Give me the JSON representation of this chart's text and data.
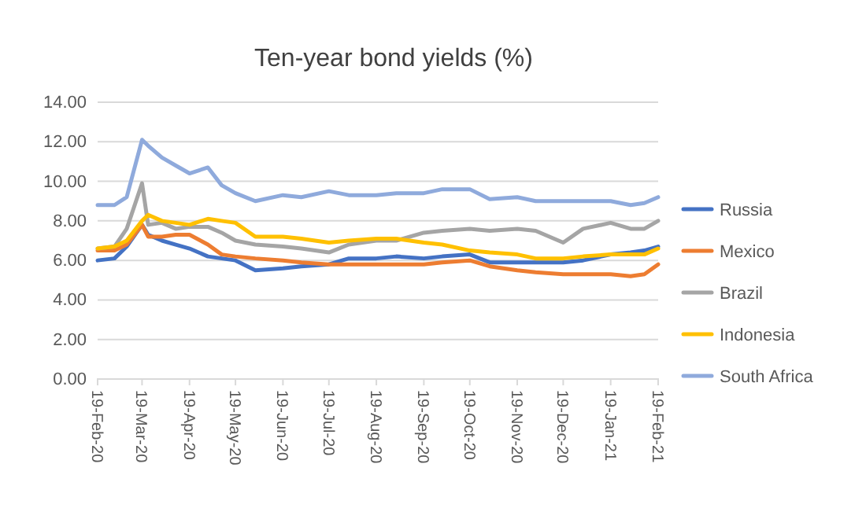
{
  "chart_data": {
    "type": "line",
    "title": "Ten-year bond yields (%)",
    "x": [
      "2020-02-19",
      "2020-03-01",
      "2020-03-09",
      "2020-03-19",
      "2020-03-23",
      "2020-04-01",
      "2020-04-10",
      "2020-04-19",
      "2020-05-01",
      "2020-05-10",
      "2020-05-19",
      "2020-06-01",
      "2020-06-19",
      "2020-07-01",
      "2020-07-19",
      "2020-08-01",
      "2020-08-19",
      "2020-09-01",
      "2020-09-19",
      "2020-10-01",
      "2020-10-19",
      "2020-11-01",
      "2020-11-19",
      "2020-12-01",
      "2020-12-19",
      "2021-01-01",
      "2021-01-19",
      "2021-02-01",
      "2021-02-10",
      "2021-02-19"
    ],
    "series": [
      {
        "name": "Russia",
        "color": "#4472c4",
        "values": [
          6.0,
          6.1,
          6.7,
          7.8,
          7.3,
          7.0,
          6.8,
          6.6,
          6.2,
          6.1,
          6.0,
          5.5,
          5.6,
          5.7,
          5.8,
          6.1,
          6.1,
          6.2,
          6.1,
          6.2,
          6.3,
          5.9,
          5.9,
          5.9,
          5.9,
          6.0,
          6.3,
          6.4,
          6.5,
          6.7
        ]
      },
      {
        "name": "Mexico",
        "color": "#ed7d31",
        "values": [
          6.5,
          6.5,
          6.8,
          7.8,
          7.2,
          7.2,
          7.3,
          7.3,
          6.8,
          6.3,
          6.2,
          6.1,
          6.0,
          5.9,
          5.8,
          5.8,
          5.8,
          5.8,
          5.8,
          5.9,
          6.0,
          5.7,
          5.5,
          5.4,
          5.3,
          5.3,
          5.3,
          5.2,
          5.3,
          5.8
        ]
      },
      {
        "name": "Brazil",
        "color": "#a5a5a5",
        "values": [
          6.6,
          6.7,
          7.6,
          9.9,
          7.8,
          7.9,
          7.6,
          7.7,
          7.7,
          7.4,
          7.0,
          6.8,
          6.7,
          6.6,
          6.4,
          6.8,
          7.0,
          7.0,
          7.4,
          7.5,
          7.6,
          7.5,
          7.6,
          7.5,
          6.9,
          7.6,
          7.9,
          7.6,
          7.6,
          8.0
        ]
      },
      {
        "name": "Indonesia",
        "color": "#ffc000",
        "values": [
          6.6,
          6.7,
          7.0,
          8.0,
          8.3,
          8.0,
          7.9,
          7.8,
          8.1,
          8.0,
          7.9,
          7.2,
          7.2,
          7.1,
          6.9,
          7.0,
          7.1,
          7.1,
          6.9,
          6.8,
          6.5,
          6.4,
          6.3,
          6.1,
          6.1,
          6.2,
          6.3,
          6.3,
          6.3,
          6.6
        ]
      },
      {
        "name": "South Africa",
        "color": "#8faadc",
        "values": [
          8.8,
          8.8,
          9.2,
          12.1,
          11.8,
          11.2,
          10.8,
          10.4,
          10.7,
          9.8,
          9.4,
          9.0,
          9.3,
          9.2,
          9.5,
          9.3,
          9.3,
          9.4,
          9.4,
          9.6,
          9.6,
          9.1,
          9.2,
          9.0,
          9.0,
          9.0,
          9.0,
          8.8,
          8.9,
          9.2
        ]
      }
    ],
    "xlim": [
      "2020-02-19",
      "2021-02-19"
    ],
    "xticks": [
      {
        "value": "2020-02-19",
        "label": "19-Feb-20"
      },
      {
        "value": "2020-03-19",
        "label": "19-Mar-20"
      },
      {
        "value": "2020-04-19",
        "label": "19-Apr-20"
      },
      {
        "value": "2020-05-19",
        "label": "19-May-20"
      },
      {
        "value": "2020-06-19",
        "label": "19-Jun-20"
      },
      {
        "value": "2020-07-19",
        "label": "19-Jul-20"
      },
      {
        "value": "2020-08-19",
        "label": "19-Aug-20"
      },
      {
        "value": "2020-09-19",
        "label": "19-Sep-20"
      },
      {
        "value": "2020-10-19",
        "label": "19-Oct-20"
      },
      {
        "value": "2020-11-19",
        "label": "19-Nov-20"
      },
      {
        "value": "2020-12-19",
        "label": "19-Dec-20"
      },
      {
        "value": "2021-01-19",
        "label": "19-Jan-21"
      },
      {
        "value": "2021-02-19",
        "label": "19-Feb-21"
      }
    ],
    "ylim": [
      0,
      14
    ],
    "yticks": [
      {
        "value": 0,
        "label": "0.00"
      },
      {
        "value": 2,
        "label": "2.00"
      },
      {
        "value": 4,
        "label": "4.00"
      },
      {
        "value": 6,
        "label": "6.00"
      },
      {
        "value": 8,
        "label": "8.00"
      },
      {
        "value": 10,
        "label": "10.00"
      },
      {
        "value": 12,
        "label": "12.00"
      },
      {
        "value": 14,
        "label": "14.00"
      }
    ],
    "grid": "y",
    "legend": "right",
    "line_style": "solid",
    "marker": "none"
  }
}
